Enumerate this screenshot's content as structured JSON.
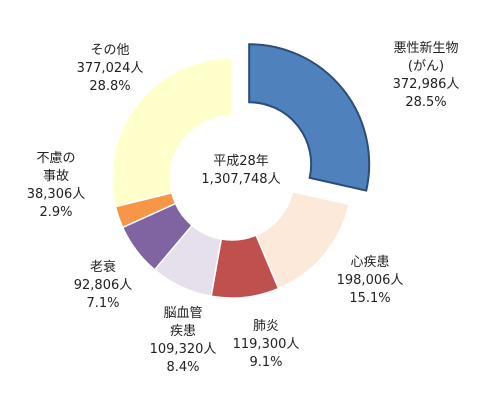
{
  "chart_data": {
    "type": "pie",
    "variant": "donut",
    "center_label": {
      "line1": "平成28年",
      "line2": "1,307,748人"
    },
    "slices": [
      {
        "name_lines": [
          "悪性新生物",
          "(がん)"
        ],
        "value": 372986,
        "value_label": "372,986人",
        "percent": "28.5%",
        "color": "#4f81bd",
        "exploded": true
      },
      {
        "name_lines": [
          "心疾患"
        ],
        "value": 198006,
        "value_label": "198,006人",
        "percent": "15.1%",
        "color": "#fde9d9",
        "exploded": false
      },
      {
        "name_lines": [
          "肺炎"
        ],
        "value": 119300,
        "value_label": "119,300人",
        "percent": "9.1%",
        "color": "#c0504d",
        "exploded": false
      },
      {
        "name_lines": [
          "脳血管",
          "疾患"
        ],
        "value": 109320,
        "value_label": "109,320人",
        "percent": "8.4%",
        "color": "#e6e0ec",
        "exploded": false
      },
      {
        "name_lines": [
          "老衰"
        ],
        "value": 92806,
        "value_label": "92,806人",
        "percent": "7.1%",
        "color": "#8064a2",
        "exploded": false
      },
      {
        "name_lines": [
          "不慮の",
          "事故"
        ],
        "value": 38306,
        "value_label": "38,306人",
        "percent": "2.9%",
        "color": "#f79646",
        "exploded": false
      },
      {
        "name_lines": [
          "その他"
        ],
        "value": 377024,
        "value_label": "377,024人",
        "percent": "28.8%",
        "color": "#ffffcc",
        "exploded": false
      }
    ]
  }
}
